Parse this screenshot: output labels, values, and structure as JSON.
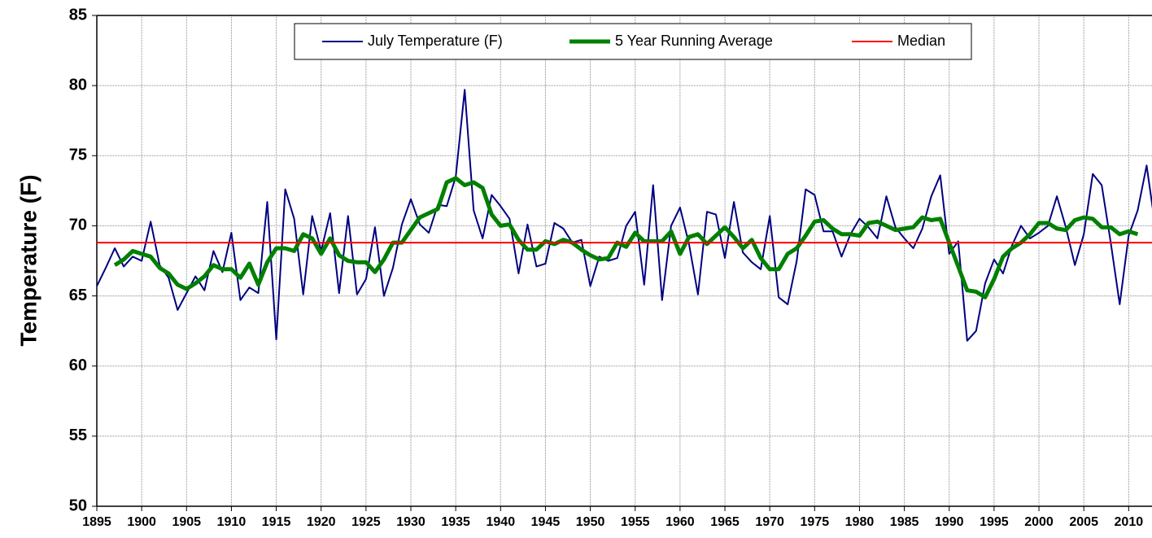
{
  "chart_data": {
    "type": "line",
    "ylabel": "Temperature (F)",
    "x": [
      1895,
      1896,
      1897,
      1898,
      1899,
      1900,
      1901,
      1902,
      1903,
      1904,
      1905,
      1906,
      1907,
      1908,
      1909,
      1910,
      1911,
      1912,
      1913,
      1914,
      1915,
      1916,
      1917,
      1918,
      1919,
      1920,
      1921,
      1922,
      1923,
      1924,
      1925,
      1926,
      1927,
      1928,
      1929,
      1930,
      1931,
      1932,
      1933,
      1934,
      1935,
      1936,
      1937,
      1938,
      1939,
      1940,
      1941,
      1942,
      1943,
      1944,
      1945,
      1946,
      1947,
      1948,
      1949,
      1950,
      1951,
      1952,
      1953,
      1954,
      1955,
      1956,
      1957,
      1958,
      1959,
      1960,
      1961,
      1962,
      1963,
      1964,
      1965,
      1966,
      1967,
      1968,
      1969,
      1970,
      1971,
      1972,
      1973,
      1974,
      1975,
      1976,
      1977,
      1978,
      1979,
      1980,
      1981,
      1982,
      1983,
      1984,
      1985,
      1986,
      1987,
      1988,
      1989,
      1990,
      1991,
      1992,
      1993,
      1994,
      1995,
      1996,
      1997,
      1998,
      1999,
      2000,
      2001,
      2002,
      2003,
      2004,
      2005,
      2006,
      2007,
      2008,
      2009,
      2010,
      2011,
      2012,
      2013
    ],
    "series": [
      {
        "name": "July Temperature (F)",
        "color": "#000080",
        "width": 2,
        "values": [
          65.7,
          67.0,
          68.4,
          67.1,
          67.8,
          67.5,
          70.3,
          67.2,
          66.3,
          64.0,
          65.2,
          66.4,
          65.4,
          68.2,
          66.7,
          69.5,
          64.7,
          65.6,
          65.2,
          71.7,
          61.9,
          72.6,
          70.5,
          65.1,
          70.7,
          68.2,
          70.9,
          65.2,
          70.7,
          65.1,
          66.2,
          69.9,
          65.0,
          67.0,
          70.1,
          71.9,
          70.1,
          69.5,
          71.5,
          71.4,
          73.5,
          79.7,
          71.1,
          69.1,
          72.2,
          71.4,
          70.5,
          66.6,
          70.1,
          67.1,
          67.3,
          70.2,
          69.8,
          68.8,
          69.0,
          65.7,
          67.8,
          67.5,
          67.7,
          70.0,
          71.0,
          65.8,
          72.9,
          64.7,
          70.0,
          71.3,
          68.7,
          65.1,
          71.0,
          70.8,
          67.7,
          71.7,
          68.1,
          67.4,
          66.9,
          70.7,
          64.9,
          64.4,
          67.5,
          72.6,
          72.2,
          69.6,
          69.6,
          67.8,
          69.4,
          70.5,
          69.9,
          69.1,
          72.1,
          69.9,
          69.1,
          68.4,
          69.8,
          72.1,
          73.6,
          68.0,
          68.9,
          61.8,
          62.5,
          65.9,
          67.6,
          66.6,
          68.6,
          70.0,
          69.1,
          69.5,
          70.0,
          72.1,
          69.9,
          67.2,
          69.4,
          73.7,
          72.9,
          68.8,
          64.4,
          69.3,
          71.1,
          74.3,
          69.8
        ]
      },
      {
        "name": "5 Year Running Average",
        "color": "#008000",
        "width": 5,
        "values": [
          null,
          null,
          67.2,
          67.6,
          68.2,
          68.0,
          67.8,
          67.0,
          66.6,
          65.8,
          65.5,
          65.9,
          66.4,
          67.2,
          66.9,
          66.9,
          66.3,
          67.3,
          65.8,
          67.4,
          68.4,
          68.4,
          68.2,
          69.4,
          69.1,
          68.0,
          69.1,
          67.9,
          67.5,
          67.4,
          67.4,
          66.7,
          67.6,
          68.8,
          68.8,
          69.7,
          70.6,
          70.9,
          71.2,
          73.1,
          73.4,
          72.9,
          73.1,
          72.7,
          70.8,
          70.0,
          70.1,
          69.0,
          68.3,
          68.3,
          68.9,
          68.7,
          69.0,
          68.8,
          68.3,
          67.9,
          67.6,
          67.7,
          68.8,
          68.5,
          69.5,
          68.9,
          68.9,
          68.9,
          69.6,
          68.0,
          69.2,
          69.4,
          68.7,
          69.3,
          69.9,
          69.2,
          68.4,
          69.0,
          67.7,
          66.9,
          66.9,
          68.0,
          68.4,
          69.3,
          70.3,
          70.4,
          69.8,
          69.4,
          69.4,
          69.3,
          70.2,
          70.3,
          70.0,
          69.7,
          69.8,
          69.9,
          70.6,
          70.4,
          70.5,
          68.8,
          67.1,
          65.4,
          65.3,
          64.9,
          66.2,
          67.8,
          68.4,
          68.8,
          69.4,
          70.2,
          70.2,
          69.8,
          69.7,
          70.4,
          70.6,
          70.5,
          69.9,
          69.9,
          69.4,
          69.6,
          69.4,
          null,
          null
        ]
      },
      {
        "name": "Median",
        "color": "#ff0000",
        "width": 2,
        "value": 68.8
      }
    ],
    "xlim": [
      1895,
      2012.6
    ],
    "xticks": [
      1895,
      1900,
      1905,
      1910,
      1915,
      1920,
      1925,
      1930,
      1935,
      1940,
      1945,
      1950,
      1955,
      1960,
      1965,
      1970,
      1975,
      1980,
      1985,
      1990,
      1995,
      2000,
      2005,
      2010
    ],
    "ylim": [
      50,
      85
    ],
    "yticks": [
      50,
      55,
      60,
      65,
      70,
      75,
      80,
      85
    ],
    "grid": true,
    "legend": "top"
  }
}
